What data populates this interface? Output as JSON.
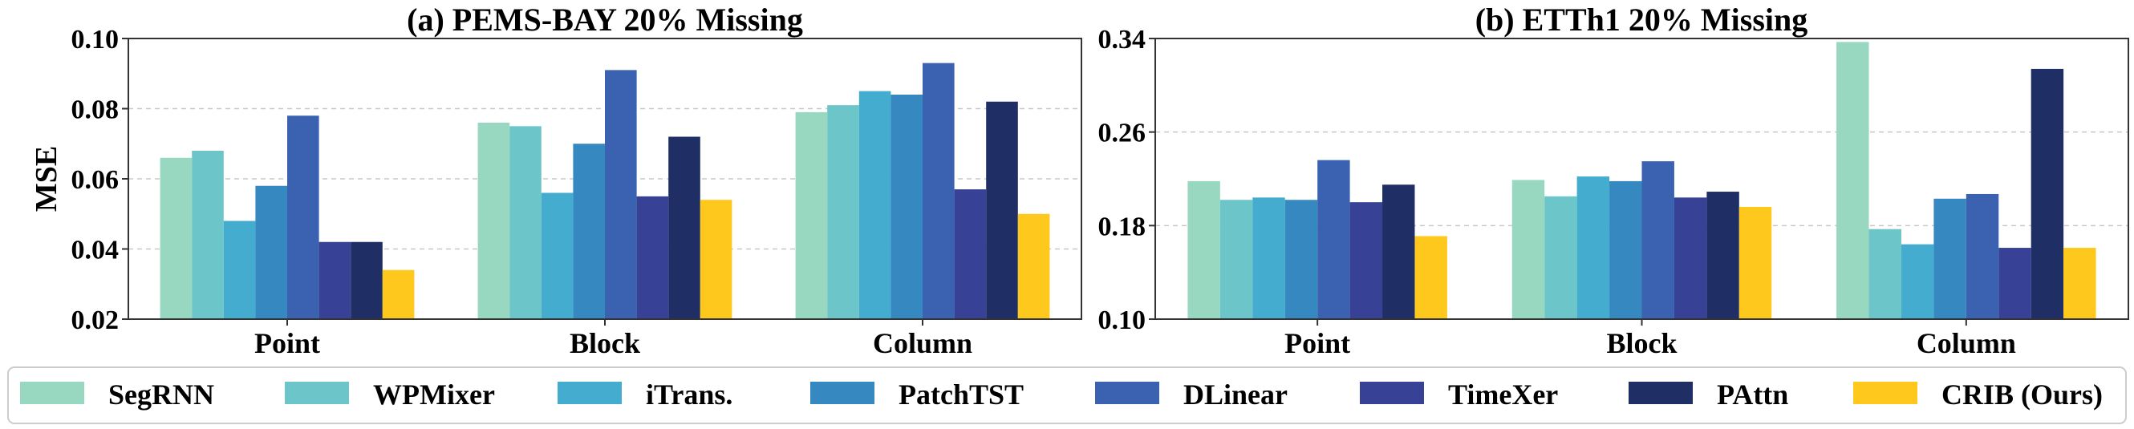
{
  "chart_data": [
    {
      "type": "bar",
      "title": "(a) PEMS-BAY 20% Missing",
      "ylabel": "MSE",
      "ylim": [
        0.02,
        0.1
      ],
      "yticks": [
        "0.02",
        "0.04",
        "0.06",
        "0.08",
        "0.10"
      ],
      "categories": [
        "Point",
        "Block",
        "Column"
      ],
      "grid": true,
      "series": [
        {
          "name": "SegRNN",
          "values": [
            0.066,
            0.076,
            0.079
          ]
        },
        {
          "name": "WPMixer",
          "values": [
            0.068,
            0.075,
            0.081
          ]
        },
        {
          "name": "iTrans.",
          "values": [
            0.048,
            0.056,
            0.085
          ]
        },
        {
          "name": "PatchTST",
          "values": [
            0.058,
            0.07,
            0.084
          ]
        },
        {
          "name": "DLinear",
          "values": [
            0.078,
            0.091,
            0.093
          ]
        },
        {
          "name": "TimeXer",
          "values": [
            0.042,
            0.055,
            0.057
          ]
        },
        {
          "name": "PAttn",
          "values": [
            0.042,
            0.072,
            0.082
          ]
        },
        {
          "name": "CRIB (Ours)",
          "values": [
            0.034,
            0.054,
            0.05
          ]
        }
      ]
    },
    {
      "type": "bar",
      "title": "(b) ETTh1 20% Missing",
      "ylabel": "",
      "ylim": [
        0.1,
        0.34
      ],
      "yticks": [
        "0.10",
        "0.18",
        "0.26",
        "0.34"
      ],
      "categories": [
        "Point",
        "Block",
        "Column"
      ],
      "grid": true,
      "series": [
        {
          "name": "SegRNN",
          "values": [
            0.218,
            0.219,
            0.337
          ]
        },
        {
          "name": "WPMixer",
          "values": [
            0.202,
            0.205,
            0.177
          ]
        },
        {
          "name": "iTrans.",
          "values": [
            0.204,
            0.222,
            0.164
          ]
        },
        {
          "name": "PatchTST",
          "values": [
            0.202,
            0.218,
            0.203
          ]
        },
        {
          "name": "DLinear",
          "values": [
            0.236,
            0.235,
            0.207
          ]
        },
        {
          "name": "TimeXer",
          "values": [
            0.2,
            0.204,
            0.161
          ]
        },
        {
          "name": "PAttn",
          "values": [
            0.215,
            0.209,
            0.314
          ]
        },
        {
          "name": "CRIB (Ours)",
          "values": [
            0.171,
            0.196,
            0.161
          ]
        }
      ]
    }
  ],
  "colors": [
    "#98d8c0",
    "#6cc6c9",
    "#44adcf",
    "#3688c0",
    "#3a62b0",
    "#374196",
    "#1f2f66",
    "#fec81c"
  ],
  "legend": {
    "placement": "bottom",
    "entries": [
      "SegRNN",
      "WPMixer",
      "iTrans.",
      "PatchTST",
      "DLinear",
      "TimeXer",
      "PAttn",
      "CRIB (Ours)"
    ]
  }
}
